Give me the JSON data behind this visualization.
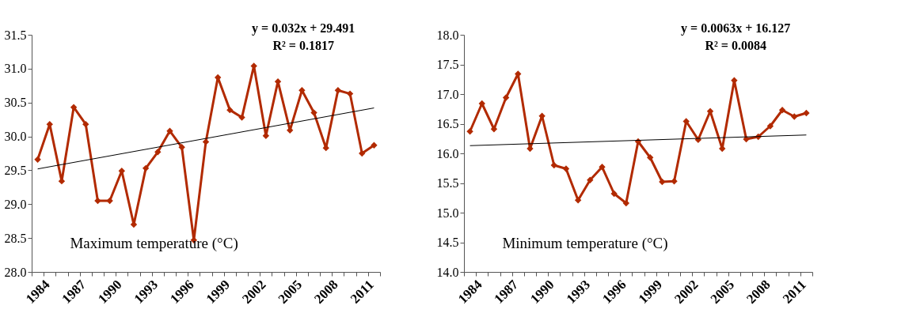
{
  "chart_data": [
    {
      "type": "line",
      "title": "Maximum  temperature  (°C)",
      "annotations": [
        "y = 0.032x + 29.491",
        "R² = 0.1817"
      ],
      "categories": [
        "1984",
        null,
        null,
        "1987",
        null,
        null,
        "1990",
        null,
        null,
        "1993",
        null,
        null,
        "1996",
        null,
        null,
        "1999",
        null,
        null,
        "2002",
        null,
        null,
        "2005",
        null,
        null,
        "2008",
        null,
        null,
        "2011",
        null
      ],
      "series": [
        {
          "color": "#b22a00",
          "marker": "diamond",
          "values": [
            29.66,
            30.18,
            29.34,
            30.43,
            30.18,
            29.05,
            29.05,
            29.49,
            28.7,
            29.53,
            29.77,
            30.08,
            29.84,
            28.47,
            29.92,
            30.87,
            30.39,
            30.28,
            31.04,
            30.01,
            30.81,
            30.09,
            30.68,
            30.35,
            29.83,
            30.68,
            30.63,
            29.75,
            29.87
          ]
        },
        {
          "color": "#000000",
          "marker": "none",
          "values": [
            29.52,
            null,
            null,
            null,
            null,
            null,
            null,
            null,
            null,
            null,
            null,
            null,
            null,
            null,
            null,
            null,
            null,
            null,
            null,
            null,
            null,
            null,
            null,
            null,
            null,
            null,
            null,
            null,
            30.42
          ]
        }
      ],
      "ylim": [
        28.0,
        31.5
      ],
      "yticks": [
        {
          "value": 28.0,
          "label": "28.0"
        },
        {
          "value": 28.5,
          "label": "28.5"
        },
        {
          "value": 29.0,
          "label": "29.0"
        },
        {
          "value": 29.5,
          "label": "29.5"
        },
        {
          "value": 30.0,
          "label": "30.0"
        },
        {
          "value": 30.5,
          "label": "30.5"
        },
        {
          "value": 31.0,
          "label": "31.0"
        },
        {
          "value": 31.5,
          "label": "31.5"
        }
      ],
      "grid": false
    },
    {
      "type": "line",
      "title": "Minimum temperature  (°C)",
      "annotations": [
        "y = 0.0063x + 16.127",
        "R² = 0.0084"
      ],
      "categories": [
        "1984",
        null,
        null,
        "1987",
        null,
        null,
        "1990",
        null,
        null,
        "1993",
        null,
        null,
        "1996",
        null,
        null,
        "1999",
        null,
        null,
        "2002",
        null,
        null,
        "2005",
        null,
        null,
        "2008",
        null,
        null,
        "2011",
        null
      ],
      "series": [
        {
          "color": "#b22a00",
          "marker": "diamond",
          "values": [
            16.37,
            16.84,
            16.41,
            16.94,
            17.34,
            16.08,
            16.63,
            15.8,
            15.74,
            15.21,
            15.55,
            15.77,
            15.32,
            15.16,
            16.2,
            15.93,
            15.52,
            15.53,
            16.54,
            16.23,
            16.71,
            16.08,
            17.23,
            16.24,
            16.28,
            16.46,
            16.73,
            16.62,
            16.68
          ]
        },
        {
          "color": "#000000",
          "marker": "none",
          "values": [
            16.13,
            null,
            null,
            null,
            null,
            null,
            null,
            null,
            null,
            null,
            null,
            null,
            null,
            null,
            null,
            null,
            null,
            null,
            null,
            null,
            null,
            null,
            null,
            null,
            null,
            null,
            null,
            null,
            16.31
          ]
        }
      ],
      "ylim": [
        14.0,
        18.0
      ],
      "yticks": [
        {
          "value": 14.0,
          "label": "14.0"
        },
        {
          "value": 14.5,
          "label": "14.5"
        },
        {
          "value": 15.0,
          "label": "15.0"
        },
        {
          "value": 15.5,
          "label": "15.5"
        },
        {
          "value": 16.0,
          "label": "16.0"
        },
        {
          "value": 16.5,
          "label": "16.5"
        },
        {
          "value": 17.0,
          "label": "17.0"
        },
        {
          "value": 17.5,
          "label": "17.5"
        },
        {
          "value": 18.0,
          "label": "18.0"
        }
      ],
      "grid": false
    }
  ]
}
